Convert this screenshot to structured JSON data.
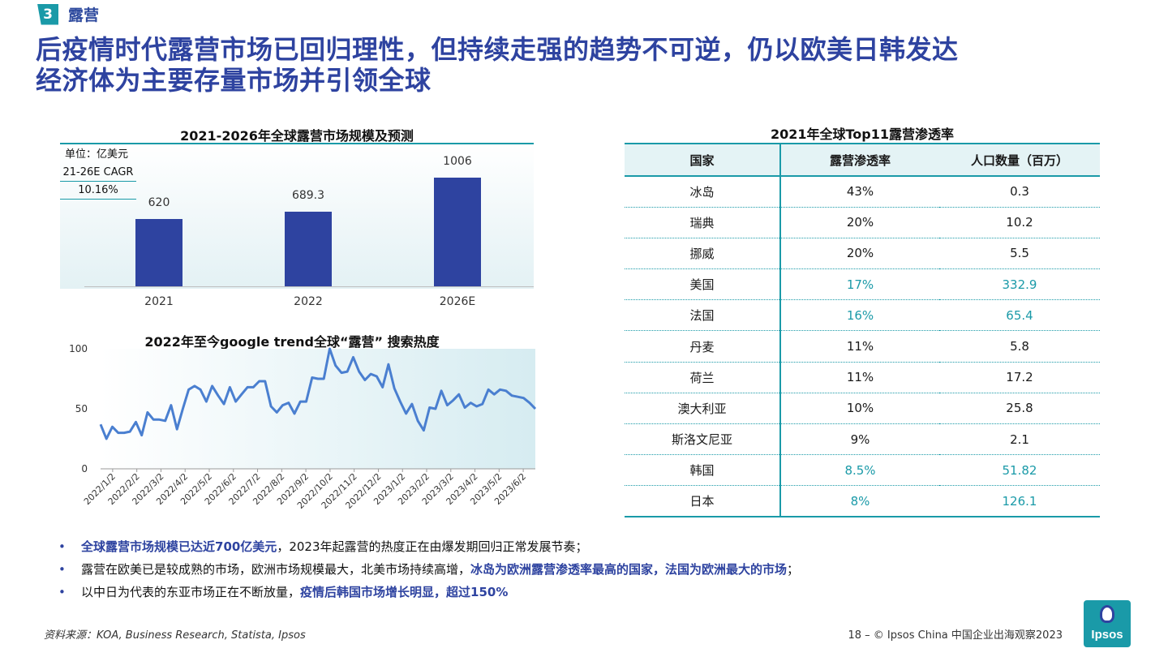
{
  "section": {
    "number": "3",
    "label": "露营"
  },
  "headline": {
    "line1": "后疫情时代露营市场已回归理性，但持续走强的趋势不可逆，仍以欧美日韩发达",
    "line2": "经济体为主要存量市场并引领全球"
  },
  "colors": {
    "primary": "#2e43a0",
    "accent": "#1a9aa8"
  },
  "chart_data": [
    {
      "type": "bar",
      "title": "2021-2026年全球露营市场规模及预测",
      "unit": "单位：亿美元",
      "cagr_label": "21-26E CAGR",
      "cagr_value": "10.16%",
      "categories": [
        "2021",
        "2022",
        "2026E"
      ],
      "values": [
        620,
        689.3,
        1006
      ],
      "value_labels": [
        "620",
        "689.3",
        "1006"
      ],
      "ylim": [
        0,
        1200
      ]
    },
    {
      "type": "line",
      "title": "2022年至今google trend全球“露营” 搜索热度",
      "y_ticks": [
        "0",
        "50",
        "100"
      ],
      "ylim": [
        0,
        100
      ],
      "x_tick_labels": [
        "2022/1/2",
        "2022/2/2",
        "2022/3/2",
        "2022/4/2",
        "2022/5/2",
        "2022/6/2",
        "2022/7/2",
        "2022/8/2",
        "2022/9/2",
        "2022/10/2",
        "2022/11/2",
        "2022/12/2",
        "2023/1/2",
        "2023/2/2",
        "2023/3/2",
        "2023/4/2",
        "2023/5/2",
        "2023/6/2"
      ],
      "x_start": "2022/1/2",
      "x_end": "2023/6/30",
      "values": [
        37,
        25,
        35,
        30,
        30,
        31,
        39,
        28,
        47,
        41,
        41,
        40,
        53,
        33,
        50,
        66,
        69,
        66,
        56,
        69,
        61,
        54,
        68,
        56,
        62,
        68,
        68,
        73,
        73,
        52,
        47,
        53,
        55,
        46,
        56,
        56,
        76,
        75,
        75,
        100,
        86,
        80,
        81,
        93,
        81,
        74,
        79,
        77,
        68,
        87,
        67,
        56,
        46,
        54,
        40,
        32,
        51,
        50,
        65,
        53,
        57,
        62,
        51,
        55,
        52,
        54,
        66,
        62,
        66,
        65,
        61,
        60,
        59,
        55,
        50
      ]
    }
  ],
  "table": {
    "title": "2021年全球Top11露营渗透率",
    "headers": [
      "国家",
      "露营渗透率",
      "人口数量（百万）"
    ],
    "rows": [
      {
        "country": "冰岛",
        "rate": "43%",
        "pop": "0.3",
        "highlight": false
      },
      {
        "country": "瑞典",
        "rate": "20%",
        "pop": "10.2",
        "highlight": false
      },
      {
        "country": "挪威",
        "rate": "20%",
        "pop": "5.5",
        "highlight": false
      },
      {
        "country": "美国",
        "rate": "17%",
        "pop": "332.9",
        "highlight": true
      },
      {
        "country": "法国",
        "rate": "16%",
        "pop": "65.4",
        "highlight": true
      },
      {
        "country": "丹麦",
        "rate": "11%",
        "pop": "5.8",
        "highlight": false
      },
      {
        "country": "荷兰",
        "rate": "11%",
        "pop": "17.2",
        "highlight": false
      },
      {
        "country": "澳大利亚",
        "rate": "10%",
        "pop": "25.8",
        "highlight": false
      },
      {
        "country": "斯洛文尼亚",
        "rate": "9%",
        "pop": "2.1",
        "highlight": false
      },
      {
        "country": "韩国",
        "rate": "8.5%",
        "pop": "51.82",
        "highlight": true
      },
      {
        "country": "日本",
        "rate": "8%",
        "pop": "126.1",
        "highlight": true
      }
    ]
  },
  "bullets": [
    {
      "em": "全球露营市场规模已达近700亿美元",
      "rest": "，2023年起露营的热度正在由爆发期回归正常发展节奏；"
    },
    {
      "pre": "露营在欧美已是较成熟的市场，欧洲市场规模最大，北美市场持续高增，",
      "em": "冰岛为欧洲露营渗透率最高的国家，法国为欧洲最大的市场",
      "rest": "；"
    },
    {
      "pre": "以中日为代表的东亚市场正在不断放量，",
      "em": "疫情后韩国市场增长明显，超过150%"
    }
  ],
  "source": "资料来源：KOA, Business Research, Statista, Ipsos",
  "footer": "18 – © Ipsos China 中国企业出海观察2023",
  "logo": "Ipsos"
}
